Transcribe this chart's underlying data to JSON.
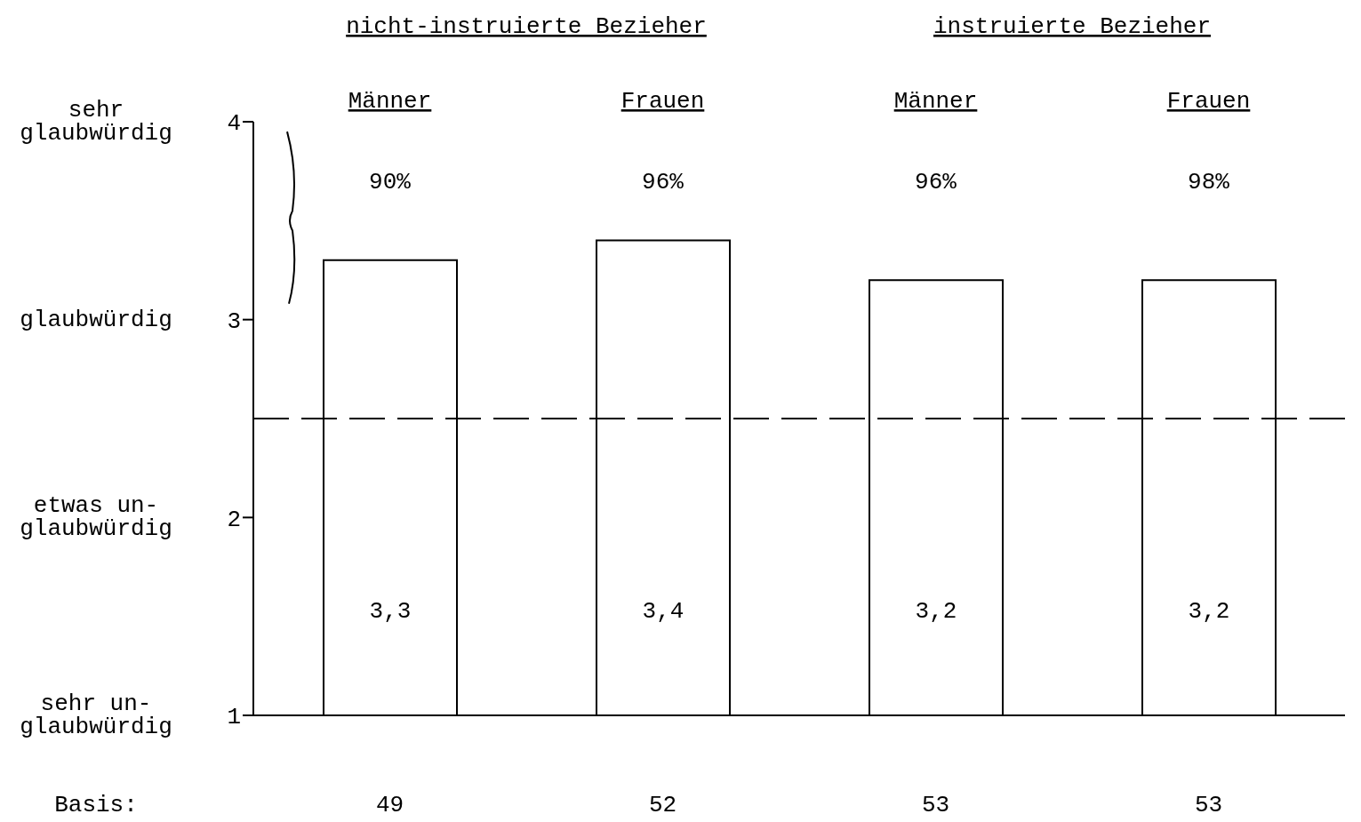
{
  "chart_data": {
    "type": "bar",
    "categories": [
      "Männer",
      "Frauen",
      "Männer",
      "Frauen"
    ],
    "values": [
      3.3,
      3.4,
      3.2,
      3.2
    ],
    "value_labels": [
      "3,3",
      "3,4",
      "3,2",
      "3,2"
    ],
    "color": "#ffffff",
    "ylim": [
      1,
      4
    ],
    "yticks": [
      1,
      2,
      3,
      4
    ],
    "ref_lines": [
      {
        "axis": "y",
        "value": 2.5,
        "line_style": "dashed",
        "color": "#000000"
      }
    ],
    "annotations": [
      "nicht-instruierte Bezieher",
      "instruierte Bezieher",
      "90%",
      "96%",
      "96%",
      "98%",
      "sehr\nglaubwürdig",
      "glaubwürdig",
      "etwas un-\nglaubwürdig",
      "sehr un-\nglaubwürdig",
      "Basis:",
      "49",
      "52",
      "53",
      "53"
    ]
  }
}
